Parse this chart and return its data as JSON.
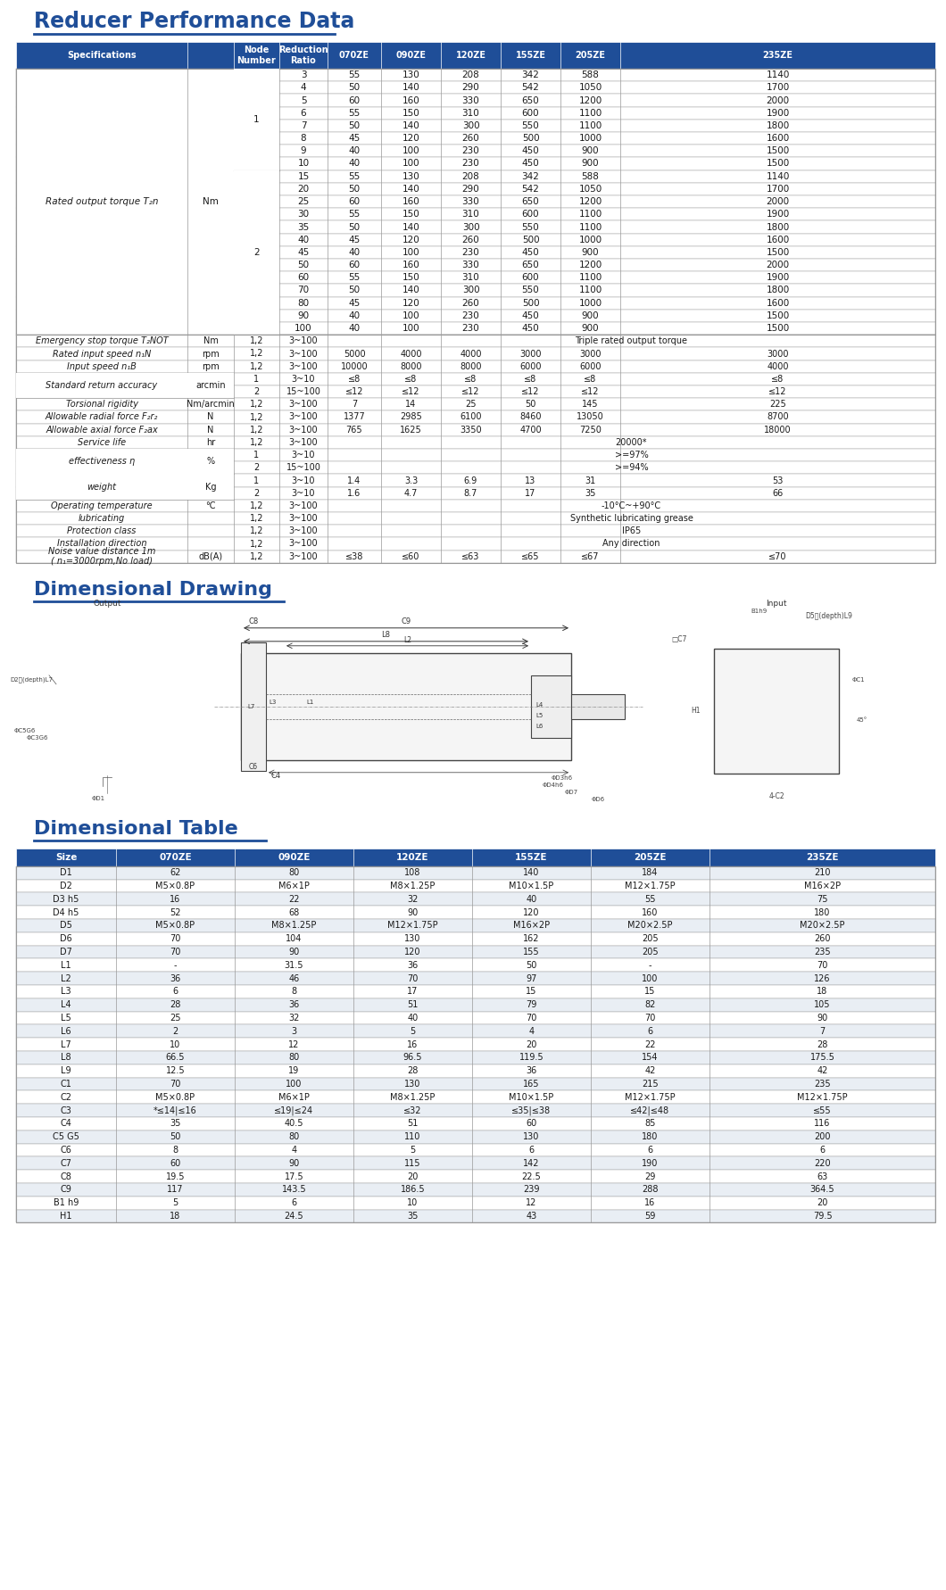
{
  "title1": "Reducer Performance Data",
  "title2": "Dimensional Drawing",
  "title3": "Dimensional Table",
  "header_bg": "#1F4E98",
  "perf_data": [
    [
      "3",
      "55",
      "130",
      "208",
      "342",
      "588",
      "1140"
    ],
    [
      "4",
      "50",
      "140",
      "290",
      "542",
      "1050",
      "1700"
    ],
    [
      "5",
      "60",
      "160",
      "330",
      "650",
      "1200",
      "2000"
    ],
    [
      "6",
      "55",
      "150",
      "310",
      "600",
      "1100",
      "1900"
    ],
    [
      "7",
      "50",
      "140",
      "300",
      "550",
      "1100",
      "1800"
    ],
    [
      "8",
      "45",
      "120",
      "260",
      "500",
      "1000",
      "1600"
    ],
    [
      "9",
      "40",
      "100",
      "230",
      "450",
      "900",
      "1500"
    ],
    [
      "10",
      "40",
      "100",
      "230",
      "450",
      "900",
      "1500"
    ],
    [
      "15",
      "55",
      "130",
      "208",
      "342",
      "588",
      "1140"
    ],
    [
      "20",
      "50",
      "140",
      "290",
      "542",
      "1050",
      "1700"
    ],
    [
      "25",
      "60",
      "160",
      "330",
      "650",
      "1200",
      "2000"
    ],
    [
      "30",
      "55",
      "150",
      "310",
      "600",
      "1100",
      "1900"
    ],
    [
      "35",
      "50",
      "140",
      "300",
      "550",
      "1100",
      "1800"
    ],
    [
      "40",
      "45",
      "120",
      "260",
      "500",
      "1000",
      "1600"
    ],
    [
      "45",
      "40",
      "100",
      "230",
      "450",
      "900",
      "1500"
    ],
    [
      "50",
      "60",
      "160",
      "330",
      "650",
      "1200",
      "2000"
    ],
    [
      "60",
      "55",
      "150",
      "310",
      "600",
      "1100",
      "1900"
    ],
    [
      "70",
      "50",
      "140",
      "300",
      "550",
      "1100",
      "1800"
    ],
    [
      "80",
      "45",
      "120",
      "260",
      "500",
      "1000",
      "1600"
    ],
    [
      "90",
      "40",
      "100",
      "230",
      "450",
      "900",
      "1500"
    ],
    [
      "100",
      "40",
      "100",
      "230",
      "450",
      "900",
      "1500"
    ]
  ],
  "lower_rows": [
    [
      "Emergency stop torque T₂NOT",
      "Nm",
      "1,2",
      "3~100",
      "Triple rated output torque",
      "",
      "",
      "",
      "",
      ""
    ],
    [
      "Rated input speed n₁N",
      "rpm",
      "1,2",
      "3~100",
      "5000",
      "4000",
      "4000",
      "3000",
      "3000",
      "3000"
    ],
    [
      "Input speed n₁B",
      "rpm",
      "1,2",
      "3~100",
      "10000",
      "8000",
      "8000",
      "6000",
      "6000",
      "4000"
    ],
    [
      "Standard return accuracy",
      "arcmin",
      "1",
      "3~10",
      "≤8",
      "≤8",
      "≤8",
      "≤8",
      "≤8",
      "≤8"
    ],
    [
      "",
      "",
      "2",
      "15~100",
      "≤12",
      "≤12",
      "≤12",
      "≤12",
      "≤12",
      "≤12"
    ],
    [
      "Torsional rigidity",
      "Nm/arcmin",
      "1,2",
      "3~100",
      "7",
      "14",
      "25",
      "50",
      "145",
      "225"
    ],
    [
      "Allowable radial force F₂r₂",
      "N",
      "1,2",
      "3~100",
      "1377",
      "2985",
      "6100",
      "8460",
      "13050",
      "8700"
    ],
    [
      "Allowable axial force F₂ax",
      "N",
      "1,2",
      "3~100",
      "765",
      "1625",
      "3350",
      "4700",
      "7250",
      "18000"
    ],
    [
      "Service life",
      "hr",
      "1,2",
      "3~100",
      "20000*",
      "",
      "",
      "",
      "",
      ""
    ],
    [
      "effectiveness η",
      "%",
      "1",
      "3~10",
      ">=97%",
      "",
      "",
      "",
      "",
      ""
    ],
    [
      "",
      "",
      "2",
      "15~100",
      ">=94%",
      "",
      "",
      "",
      "",
      ""
    ],
    [
      "weight",
      "Kg",
      "1",
      "3~10",
      "1.4",
      "3.3",
      "6.9",
      "13",
      "31",
      "53"
    ],
    [
      "",
      "",
      "2",
      "3~10",
      "1.6",
      "4.7",
      "8.7",
      "17",
      "35",
      "66"
    ],
    [
      "Operating temperature",
      "°C",
      "1,2",
      "3~100",
      "-10°C~+90°C",
      "",
      "",
      "",
      "",
      ""
    ],
    [
      "lubricating",
      "",
      "1,2",
      "3~100",
      "Synthetic lubricating grease",
      "",
      "",
      "",
      "",
      ""
    ],
    [
      "Protection class",
      "",
      "1,2",
      "3~100",
      "IP65",
      "",
      "",
      "",
      "",
      ""
    ],
    [
      "Installation direction",
      "",
      "1,2",
      "3~100",
      "Any direction",
      "",
      "",
      "",
      "",
      ""
    ],
    [
      "Noise value distance 1m\n( n₁=3000rpm,No load)",
      "dB(A)",
      "1,2",
      "3~100",
      "≤38",
      "≤60",
      "≤63",
      "≤65",
      "≤67",
      "≤70"
    ]
  ],
  "dim_headers": [
    "Size",
    "070ZE",
    "090ZE",
    "120ZE",
    "155ZE",
    "205ZE",
    "235ZE"
  ],
  "dim_data": [
    [
      "D1",
      "62",
      "80",
      "108",
      "140",
      "184",
      "210"
    ],
    [
      "D2",
      "M5×0.8P",
      "M6×1P",
      "M8×1.25P",
      "M10×1.5P",
      "M12×1.75P",
      "M16×2P"
    ],
    [
      "D3 h5",
      "16",
      "22",
      "32",
      "40",
      "55",
      "75"
    ],
    [
      "D4 h5",
      "52",
      "68",
      "90",
      "120",
      "160",
      "180"
    ],
    [
      "D5",
      "M5×0.8P",
      "M8×1.25P",
      "M12×1.75P",
      "M16×2P",
      "M20×2.5P",
      "M20×2.5P"
    ],
    [
      "D6",
      "70",
      "104",
      "130",
      "162",
      "205",
      "260"
    ],
    [
      "D7",
      "70",
      "90",
      "120",
      "155",
      "205",
      "235"
    ],
    [
      "L1",
      "-",
      "31.5",
      "36",
      "50",
      "-",
      "70"
    ],
    [
      "L2",
      "36",
      "46",
      "70",
      "97",
      "100",
      "126"
    ],
    [
      "L3",
      "6",
      "8",
      "17",
      "15",
      "15",
      "18"
    ],
    [
      "L4",
      "28",
      "36",
      "51",
      "79",
      "82",
      "105"
    ],
    [
      "L5",
      "25",
      "32",
      "40",
      "70",
      "70",
      "90"
    ],
    [
      "L6",
      "2",
      "3",
      "5",
      "4",
      "6",
      "7"
    ],
    [
      "L7",
      "10",
      "12",
      "16",
      "20",
      "22",
      "28"
    ],
    [
      "L8",
      "66.5",
      "80",
      "96.5",
      "119.5",
      "154",
      "175.5"
    ],
    [
      "L9",
      "12.5",
      "19",
      "28",
      "36",
      "42",
      "42"
    ],
    [
      "C1",
      "70",
      "100",
      "130",
      "165",
      "215",
      "235"
    ],
    [
      "C2",
      "M5×0.8P",
      "M6×1P",
      "M8×1.25P",
      "M10×1.5P",
      "M12×1.75P",
      "M12×1.75P"
    ],
    [
      "C3",
      "*≤14|≤16",
      "≤19|≤24",
      "≤32",
      "≤35|≤38",
      "≤42|≤48",
      "≤55"
    ],
    [
      "C4",
      "35",
      "40.5",
      "51",
      "60",
      "85",
      "116"
    ],
    [
      "C5 G5",
      "50",
      "80",
      "110",
      "130",
      "180",
      "200"
    ],
    [
      "C6",
      "8",
      "4",
      "5",
      "6",
      "6",
      "6"
    ],
    [
      "C7",
      "60",
      "90",
      "115",
      "142",
      "190",
      "220"
    ],
    [
      "C8",
      "19.5",
      "17.5",
      "20",
      "22.5",
      "29",
      "63"
    ],
    [
      "C9",
      "117",
      "143.5",
      "186.5",
      "239",
      "288",
      "364.5"
    ],
    [
      "B1 h9",
      "5",
      "6",
      "10",
      "12",
      "16",
      "20"
    ],
    [
      "H1",
      "18",
      "24.5",
      "35",
      "43",
      "59",
      "79.5"
    ]
  ]
}
